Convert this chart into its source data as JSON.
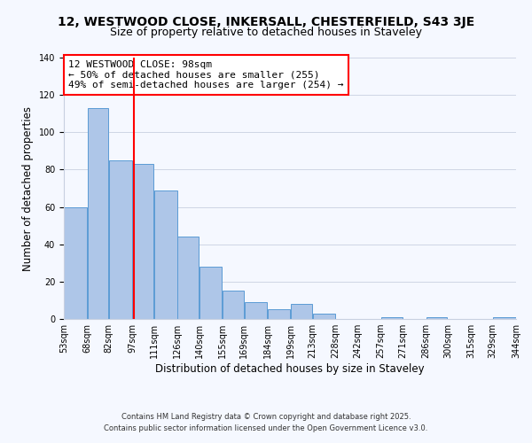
{
  "title": "12, WESTWOOD CLOSE, INKERSALL, CHESTERFIELD, S43 3JE",
  "subtitle": "Size of property relative to detached houses in Staveley",
  "xlabel": "Distribution of detached houses by size in Staveley",
  "ylabel": "Number of detached properties",
  "bar_left_edges": [
    53,
    68,
    82,
    97,
    111,
    126,
    140,
    155,
    169,
    184,
    199,
    213,
    228,
    242,
    257,
    271,
    286,
    300,
    315,
    329
  ],
  "bar_widths": [
    15,
    14,
    15,
    14,
    15,
    14,
    15,
    14,
    15,
    15,
    14,
    15,
    14,
    15,
    14,
    15,
    14,
    15,
    14,
    15
  ],
  "bar_heights": [
    60,
    113,
    85,
    83,
    69,
    44,
    28,
    15,
    9,
    5,
    8,
    3,
    0,
    0,
    1,
    0,
    1,
    0,
    0,
    1
  ],
  "tick_labels": [
    "53sqm",
    "68sqm",
    "82sqm",
    "97sqm",
    "111sqm",
    "126sqm",
    "140sqm",
    "155sqm",
    "169sqm",
    "184sqm",
    "199sqm",
    "213sqm",
    "228sqm",
    "242sqm",
    "257sqm",
    "271sqm",
    "286sqm",
    "300sqm",
    "315sqm",
    "329sqm",
    "344sqm"
  ],
  "bar_color": "#aec6e8",
  "bar_edge_color": "#5b9bd5",
  "vline_x": 98,
  "vline_color": "red",
  "ylim": [
    0,
    140
  ],
  "yticks": [
    0,
    20,
    40,
    60,
    80,
    100,
    120,
    140
  ],
  "annotation_title": "12 WESTWOOD CLOSE: 98sqm",
  "annotation_line1": "← 50% of detached houses are smaller (255)",
  "annotation_line2": "49% of semi-detached houses are larger (254) →",
  "footer_line1": "Contains HM Land Registry data © Crown copyright and database right 2025.",
  "footer_line2": "Contains public sector information licensed under the Open Government Licence v3.0.",
  "background_color": "#f5f8ff",
  "title_fontsize": 10,
  "subtitle_fontsize": 9,
  "annotation_fontsize": 8,
  "axis_label_fontsize": 8.5,
  "tick_fontsize": 7,
  "footer_fontsize": 6,
  "ylabel_fontsize": 8.5
}
